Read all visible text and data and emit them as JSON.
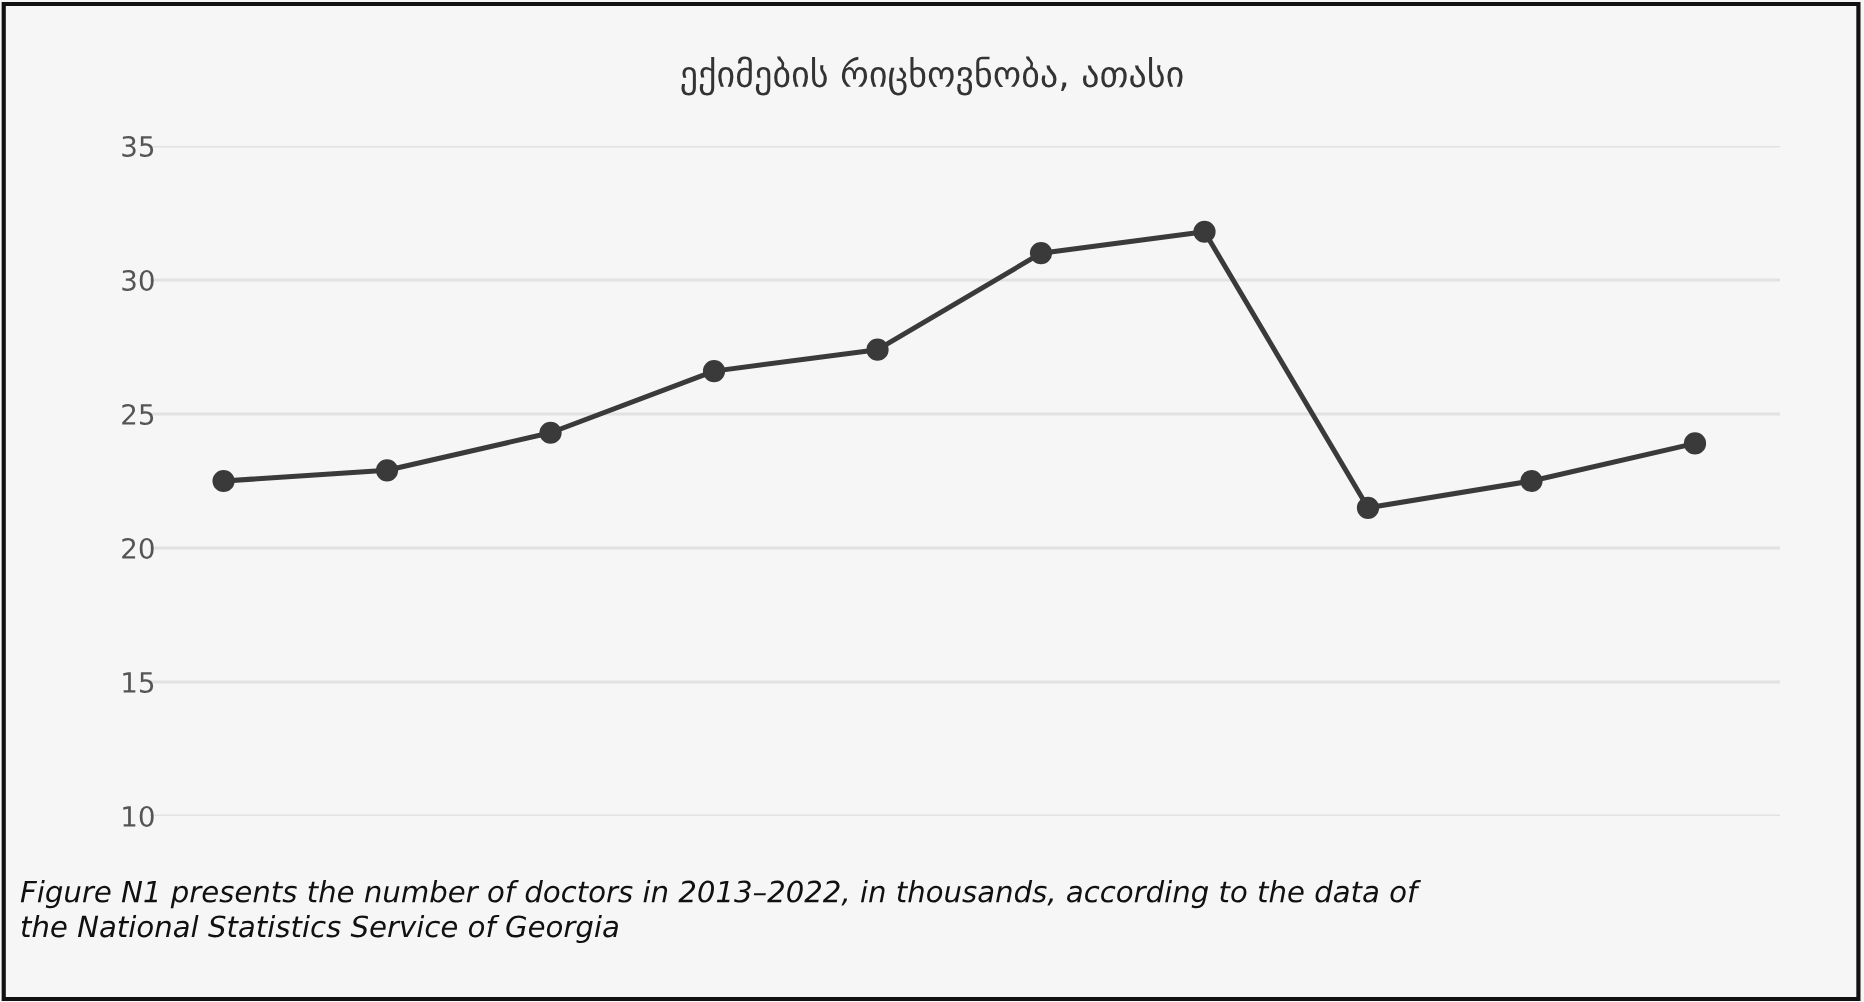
{
  "chart_data": {
    "type": "line",
    "title": "ექიმების რიცხოვნობა, ათასი",
    "categories": [
      null,
      null,
      null,
      null,
      null,
      null,
      null,
      null,
      null,
      null
    ],
    "series": [
      {
        "color": "#3a3a3a",
        "values": [
          22.5,
          22.9,
          24.3,
          26.6,
          27.4,
          31.0,
          31.8,
          21.5,
          22.5,
          23.9
        ]
      }
    ],
    "ylim": [
      10,
      35
    ],
    "yticks": [
      10,
      15,
      20,
      25,
      30,
      35
    ],
    "grid": "y",
    "marker": "circle",
    "line_style": "solid",
    "legend": false,
    "annotations": [
      "Figure N1 presents the number of doctors in 2013–2022, in thousands, according to the data of\nthe National Statistics Service of Georgia"
    ]
  }
}
